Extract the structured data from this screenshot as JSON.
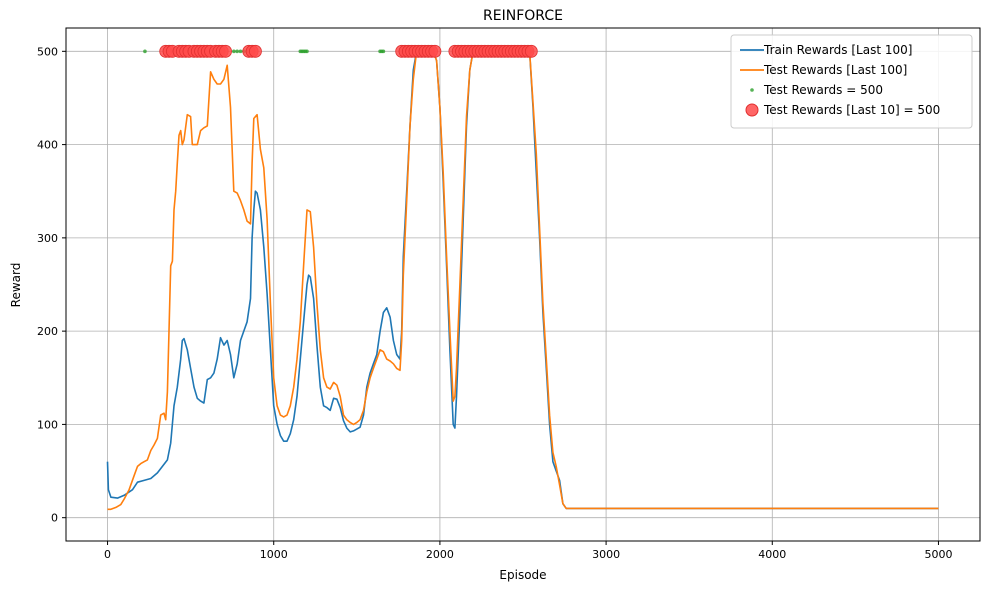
{
  "chart_data": {
    "type": "line",
    "title": "REINFORCE",
    "xlabel": "Episode",
    "ylabel": "Reward",
    "xlim": [
      -250,
      5250
    ],
    "ylim": [
      -25,
      525
    ],
    "xticks": [
      0,
      1000,
      2000,
      3000,
      4000,
      5000
    ],
    "yticks": [
      0,
      100,
      200,
      300,
      400,
      500
    ],
    "grid": true,
    "legend_position": "top-right",
    "series": [
      {
        "name": "Train Rewards [Last 100]",
        "color": "#1f77b4",
        "points": [
          [
            0,
            60
          ],
          [
            5,
            30
          ],
          [
            20,
            22
          ],
          [
            60,
            21
          ],
          [
            100,
            24
          ],
          [
            150,
            30
          ],
          [
            180,
            38
          ],
          [
            220,
            40
          ],
          [
            260,
            42
          ],
          [
            300,
            48
          ],
          [
            330,
            55
          ],
          [
            360,
            62
          ],
          [
            380,
            80
          ],
          [
            400,
            120
          ],
          [
            420,
            140
          ],
          [
            440,
            170
          ],
          [
            450,
            190
          ],
          [
            460,
            192
          ],
          [
            480,
            180
          ],
          [
            500,
            160
          ],
          [
            520,
            140
          ],
          [
            540,
            128
          ],
          [
            560,
            125
          ],
          [
            580,
            123
          ],
          [
            600,
            148
          ],
          [
            620,
            150
          ],
          [
            640,
            155
          ],
          [
            660,
            170
          ],
          [
            680,
            193
          ],
          [
            700,
            185
          ],
          [
            720,
            190
          ],
          [
            740,
            175
          ],
          [
            760,
            150
          ],
          [
            780,
            165
          ],
          [
            800,
            190
          ],
          [
            820,
            200
          ],
          [
            840,
            210
          ],
          [
            860,
            235
          ],
          [
            870,
            300
          ],
          [
            880,
            330
          ],
          [
            890,
            350
          ],
          [
            900,
            348
          ],
          [
            920,
            330
          ],
          [
            940,
            290
          ],
          [
            960,
            240
          ],
          [
            980,
            180
          ],
          [
            1000,
            120
          ],
          [
            1020,
            100
          ],
          [
            1040,
            88
          ],
          [
            1060,
            82
          ],
          [
            1080,
            82
          ],
          [
            1100,
            90
          ],
          [
            1120,
            105
          ],
          [
            1140,
            130
          ],
          [
            1160,
            170
          ],
          [
            1180,
            210
          ],
          [
            1200,
            250
          ],
          [
            1210,
            260
          ],
          [
            1220,
            258
          ],
          [
            1240,
            235
          ],
          [
            1260,
            185
          ],
          [
            1280,
            140
          ],
          [
            1300,
            120
          ],
          [
            1320,
            118
          ],
          [
            1340,
            115
          ],
          [
            1360,
            128
          ],
          [
            1380,
            127
          ],
          [
            1400,
            118
          ],
          [
            1420,
            104
          ],
          [
            1440,
            96
          ],
          [
            1460,
            92
          ],
          [
            1480,
            93
          ],
          [
            1500,
            95
          ],
          [
            1520,
            97
          ],
          [
            1540,
            110
          ],
          [
            1560,
            140
          ],
          [
            1580,
            155
          ],
          [
            1600,
            165
          ],
          [
            1620,
            175
          ],
          [
            1640,
            200
          ],
          [
            1660,
            220
          ],
          [
            1680,
            225
          ],
          [
            1700,
            215
          ],
          [
            1720,
            190
          ],
          [
            1740,
            175
          ],
          [
            1760,
            170
          ],
          [
            1770,
            200
          ],
          [
            1780,
            280
          ],
          [
            1800,
            350
          ],
          [
            1820,
            420
          ],
          [
            1840,
            480
          ],
          [
            1860,
            500
          ],
          [
            1880,
            500
          ],
          [
            1900,
            500
          ],
          [
            1920,
            500
          ],
          [
            1960,
            500
          ],
          [
            1980,
            490
          ],
          [
            2000,
            440
          ],
          [
            2020,
            360
          ],
          [
            2040,
            270
          ],
          [
            2060,
            180
          ],
          [
            2080,
            100
          ],
          [
            2090,
            96
          ],
          [
            2100,
            130
          ],
          [
            2120,
            220
          ],
          [
            2140,
            320
          ],
          [
            2160,
            420
          ],
          [
            2180,
            480
          ],
          [
            2200,
            500
          ],
          [
            2250,
            500
          ],
          [
            2300,
            500
          ],
          [
            2350,
            500
          ],
          [
            2400,
            500
          ],
          [
            2450,
            500
          ],
          [
            2500,
            500
          ],
          [
            2540,
            500
          ],
          [
            2560,
            440
          ],
          [
            2580,
            370
          ],
          [
            2600,
            300
          ],
          [
            2620,
            220
          ],
          [
            2640,
            160
          ],
          [
            2660,
            100
          ],
          [
            2680,
            60
          ],
          [
            2700,
            50
          ],
          [
            2720,
            40
          ],
          [
            2740,
            15
          ],
          [
            2760,
            10
          ],
          [
            3000,
            10
          ],
          [
            4000,
            10
          ],
          [
            5000,
            10
          ]
        ]
      },
      {
        "name": "Test Rewards [Last 100]",
        "color": "#ff7f0e",
        "points": [
          [
            0,
            9
          ],
          [
            20,
            9
          ],
          [
            50,
            11
          ],
          [
            80,
            14
          ],
          [
            100,
            20
          ],
          [
            130,
            30
          ],
          [
            160,
            45
          ],
          [
            180,
            55
          ],
          [
            200,
            58
          ],
          [
            220,
            60
          ],
          [
            240,
            62
          ],
          [
            260,
            72
          ],
          [
            280,
            78
          ],
          [
            300,
            85
          ],
          [
            320,
            110
          ],
          [
            340,
            112
          ],
          [
            350,
            105
          ],
          [
            360,
            135
          ],
          [
            370,
            200
          ],
          [
            380,
            270
          ],
          [
            390,
            275
          ],
          [
            400,
            330
          ],
          [
            410,
            350
          ],
          [
            420,
            380
          ],
          [
            430,
            410
          ],
          [
            440,
            415
          ],
          [
            450,
            400
          ],
          [
            460,
            405
          ],
          [
            480,
            432
          ],
          [
            500,
            430
          ],
          [
            510,
            400
          ],
          [
            540,
            400
          ],
          [
            560,
            415
          ],
          [
            580,
            418
          ],
          [
            600,
            420
          ],
          [
            620,
            478
          ],
          [
            640,
            470
          ],
          [
            660,
            465
          ],
          [
            680,
            465
          ],
          [
            700,
            470
          ],
          [
            720,
            485
          ],
          [
            740,
            440
          ],
          [
            760,
            350
          ],
          [
            780,
            348
          ],
          [
            800,
            340
          ],
          [
            820,
            330
          ],
          [
            840,
            318
          ],
          [
            860,
            315
          ],
          [
            870,
            380
          ],
          [
            880,
            428
          ],
          [
            900,
            432
          ],
          [
            920,
            395
          ],
          [
            940,
            375
          ],
          [
            960,
            320
          ],
          [
            980,
            230
          ],
          [
            1000,
            150
          ],
          [
            1020,
            120
          ],
          [
            1040,
            110
          ],
          [
            1060,
            108
          ],
          [
            1080,
            110
          ],
          [
            1100,
            120
          ],
          [
            1120,
            140
          ],
          [
            1140,
            170
          ],
          [
            1160,
            210
          ],
          [
            1180,
            270
          ],
          [
            1200,
            330
          ],
          [
            1220,
            328
          ],
          [
            1240,
            290
          ],
          [
            1260,
            230
          ],
          [
            1280,
            180
          ],
          [
            1300,
            150
          ],
          [
            1320,
            140
          ],
          [
            1340,
            138
          ],
          [
            1360,
            145
          ],
          [
            1380,
            142
          ],
          [
            1400,
            130
          ],
          [
            1420,
            110
          ],
          [
            1440,
            105
          ],
          [
            1460,
            102
          ],
          [
            1480,
            100
          ],
          [
            1500,
            102
          ],
          [
            1520,
            105
          ],
          [
            1540,
            115
          ],
          [
            1560,
            135
          ],
          [
            1580,
            150
          ],
          [
            1600,
            160
          ],
          [
            1620,
            170
          ],
          [
            1640,
            180
          ],
          [
            1660,
            178
          ],
          [
            1680,
            170
          ],
          [
            1700,
            168
          ],
          [
            1720,
            165
          ],
          [
            1740,
            160
          ],
          [
            1760,
            158
          ],
          [
            1770,
            190
          ],
          [
            1780,
            260
          ],
          [
            1800,
            340
          ],
          [
            1820,
            420
          ],
          [
            1840,
            470
          ],
          [
            1860,
            500
          ],
          [
            1880,
            500
          ],
          [
            1920,
            500
          ],
          [
            1960,
            500
          ],
          [
            1980,
            490
          ],
          [
            2000,
            440
          ],
          [
            2020,
            370
          ],
          [
            2040,
            280
          ],
          [
            2060,
            200
          ],
          [
            2080,
            125
          ],
          [
            2090,
            130
          ],
          [
            2100,
            160
          ],
          [
            2120,
            250
          ],
          [
            2140,
            340
          ],
          [
            2160,
            430
          ],
          [
            2180,
            480
          ],
          [
            2200,
            500
          ],
          [
            2300,
            500
          ],
          [
            2400,
            500
          ],
          [
            2500,
            500
          ],
          [
            2540,
            500
          ],
          [
            2560,
            445
          ],
          [
            2580,
            390
          ],
          [
            2600,
            310
          ],
          [
            2620,
            230
          ],
          [
            2640,
            170
          ],
          [
            2660,
            110
          ],
          [
            2680,
            70
          ],
          [
            2700,
            55
          ],
          [
            2720,
            35
          ],
          [
            2740,
            15
          ],
          [
            2760,
            10
          ],
          [
            3000,
            10
          ],
          [
            4000,
            10
          ],
          [
            5000,
            10
          ]
        ]
      },
      {
        "name": "Test Rewards = 500",
        "color": "#2ca02c",
        "type": "scatter",
        "value": 500,
        "x": [
          225,
          360,
          420,
          470,
          520,
          580,
          640,
          700,
          760,
          780,
          800,
          820,
          840,
          880,
          1160,
          1170,
          1180,
          1190,
          1200,
          1640,
          1650,
          1660,
          1780,
          1800,
          1850,
          1900,
          1950,
          2100,
          2200,
          2300,
          2400,
          2500,
          2550
        ]
      },
      {
        "name": "Test Rewards [Last 10] = 500",
        "color": "#ff4b4b",
        "type": "scatter",
        "value": 500,
        "x": [
          350,
          370,
          390,
          430,
          450,
          470,
          490,
          520,
          540,
          560,
          580,
          600,
          620,
          650,
          670,
          690,
          710,
          850,
          870,
          890,
          1770,
          1790,
          1810,
          1830,
          1850,
          1870,
          1890,
          1910,
          1930,
          1950,
          1970,
          2090,
          2110,
          2130,
          2150,
          2170,
          2190,
          2210,
          2230,
          2250,
          2270,
          2290,
          2310,
          2330,
          2350,
          2370,
          2390,
          2410,
          2430,
          2450,
          2470,
          2490,
          2510,
          2530,
          2550
        ]
      }
    ]
  }
}
